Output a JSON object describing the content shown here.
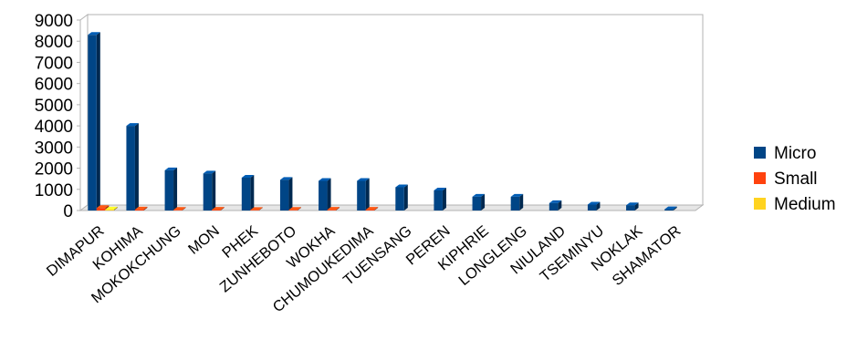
{
  "chart_data": {
    "type": "bar",
    "title": "",
    "xlabel": "",
    "ylabel": "",
    "ylim": [
      0,
      9000
    ],
    "yticks": [
      0,
      1000,
      2000,
      3000,
      4000,
      5000,
      6000,
      7000,
      8000,
      9000
    ],
    "grid": false,
    "legend_position": "right",
    "categories": [
      "DIMAPUR",
      "KOHIMA",
      "MOKOKCHUNG",
      "MON",
      "PHEK",
      "ZUNHEBOTO",
      "WOKHA",
      "CHUMOUKEDIMA",
      "TUENSANG",
      "PEREN",
      "KIPHRIE",
      "LONGLENG",
      "NIULAND",
      "TSEMINYU",
      "NOKLAK",
      "SHAMATOR"
    ],
    "series": [
      {
        "name": "Micro",
        "color": "#004586",
        "values": [
          8300,
          4000,
          1900,
          1750,
          1550,
          1450,
          1400,
          1400,
          1100,
          950,
          650,
          650,
          350,
          280,
          250,
          60
        ]
      },
      {
        "name": "Small",
        "color": "#ff420e",
        "values": [
          120,
          50,
          30,
          40,
          25,
          30,
          35,
          40,
          20,
          15,
          10,
          10,
          5,
          5,
          5,
          2
        ]
      },
      {
        "name": "Medium",
        "color": "#ffd320",
        "values": [
          50,
          10,
          5,
          5,
          5,
          5,
          5,
          5,
          5,
          2,
          2,
          2,
          1,
          1,
          1,
          0
        ]
      }
    ]
  }
}
